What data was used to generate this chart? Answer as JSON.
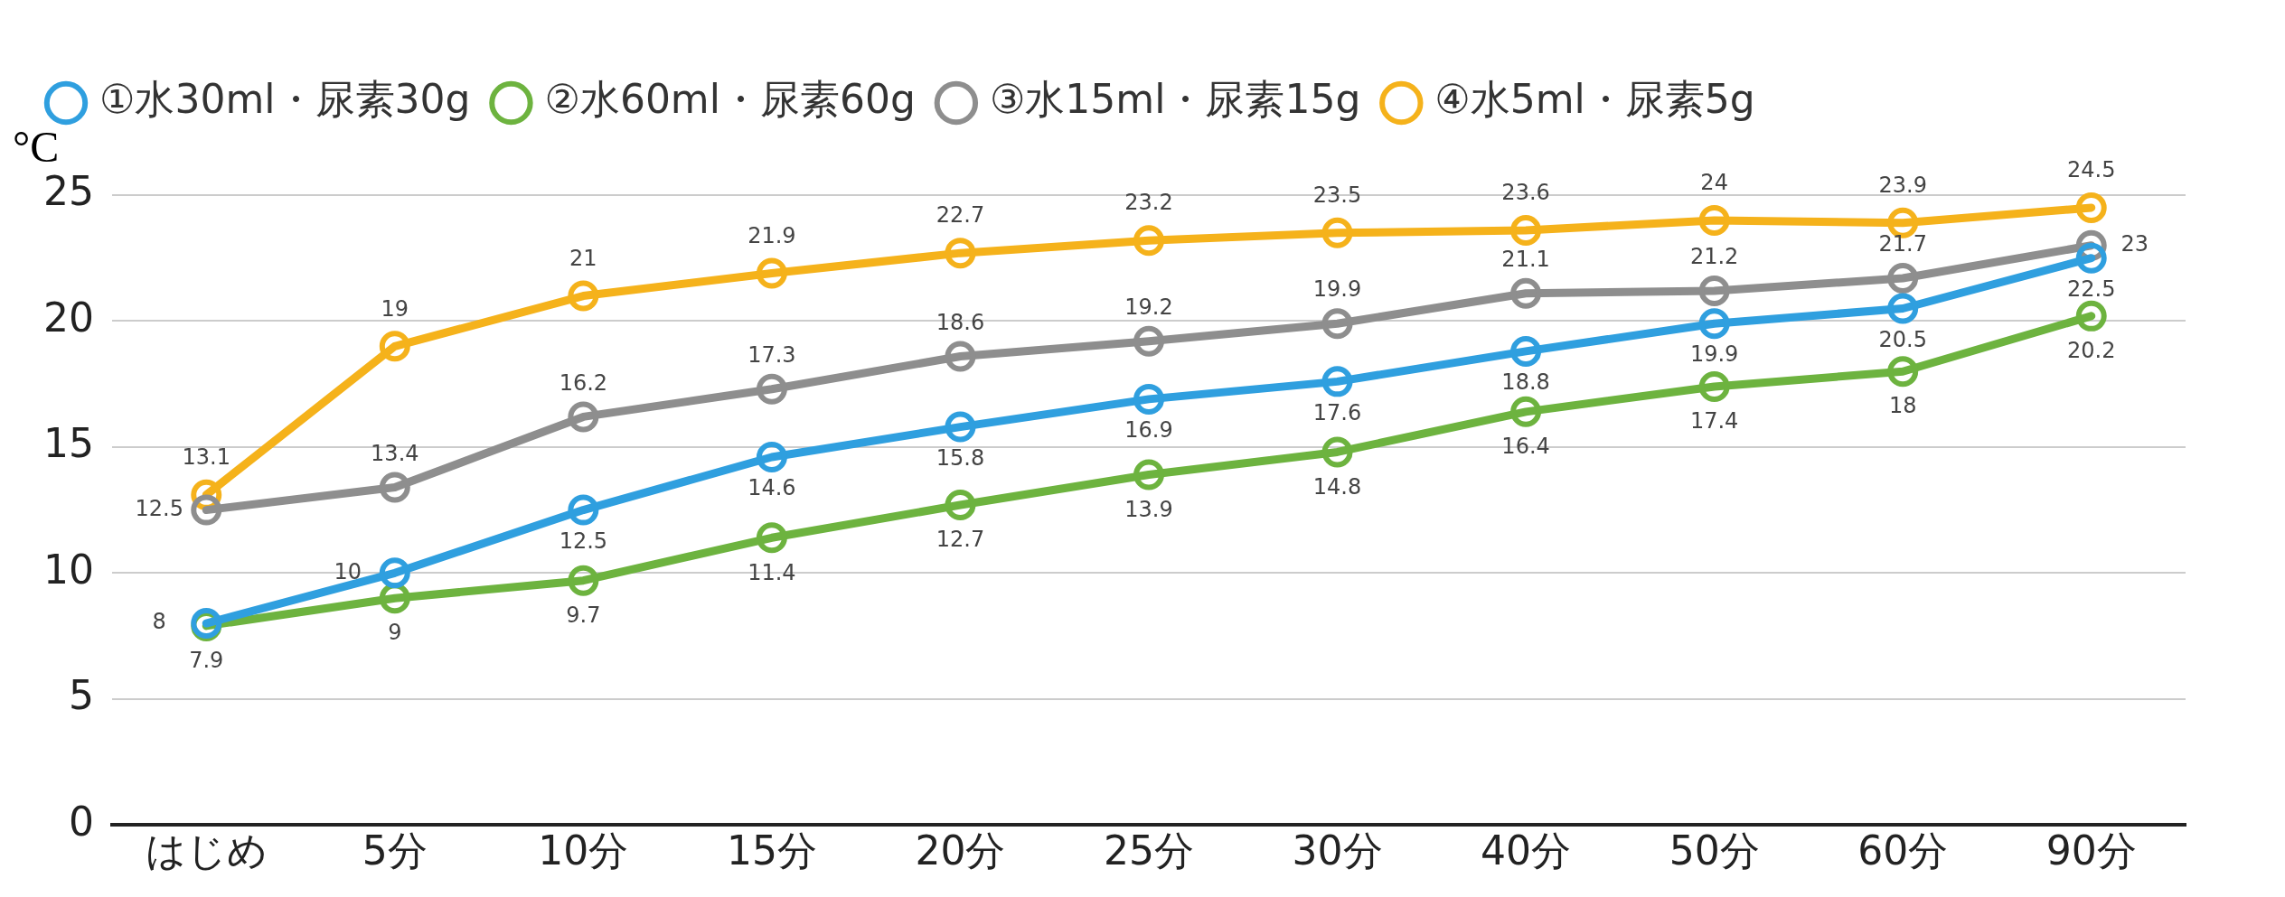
{
  "chart_data": {
    "type": "line",
    "ylabel": "°C",
    "categories": [
      "はじめ",
      "5分",
      "10分",
      "15分",
      "20分",
      "25分",
      "30分",
      "40分",
      "50分",
      "60分",
      "90分"
    ],
    "series": [
      {
        "name": "①水30ml・尿素30g",
        "color": "#2f9fdf",
        "values": [
          8,
          10,
          12.5,
          14.6,
          15.8,
          16.9,
          17.6,
          18.8,
          19.9,
          20.5,
          22.5
        ]
      },
      {
        "name": "②水60ml・尿素60g",
        "color": "#6db33f",
        "values": [
          7.9,
          9,
          9.7,
          11.4,
          12.7,
          13.9,
          14.8,
          16.4,
          17.4,
          18,
          20.2
        ]
      },
      {
        "name": "③水15ml・尿素15g",
        "color": "#8e8e8e",
        "values": [
          12.5,
          13.4,
          16.2,
          17.3,
          18.6,
          19.2,
          19.9,
          21.1,
          21.2,
          21.7,
          23
        ]
      },
      {
        "name": "④水5ml・尿素5g",
        "color": "#f5b21b",
        "values": [
          13.1,
          19,
          21,
          21.9,
          22.7,
          23.2,
          23.5,
          23.6,
          24,
          23.9,
          24.5
        ]
      }
    ],
    "ylim": [
      0,
      25
    ],
    "yticks": [
      0,
      5,
      10,
      15,
      20,
      25
    ],
    "grid": "y",
    "legend": "top left",
    "marker": "circle",
    "line_style": "solid",
    "data_labels": true
  }
}
